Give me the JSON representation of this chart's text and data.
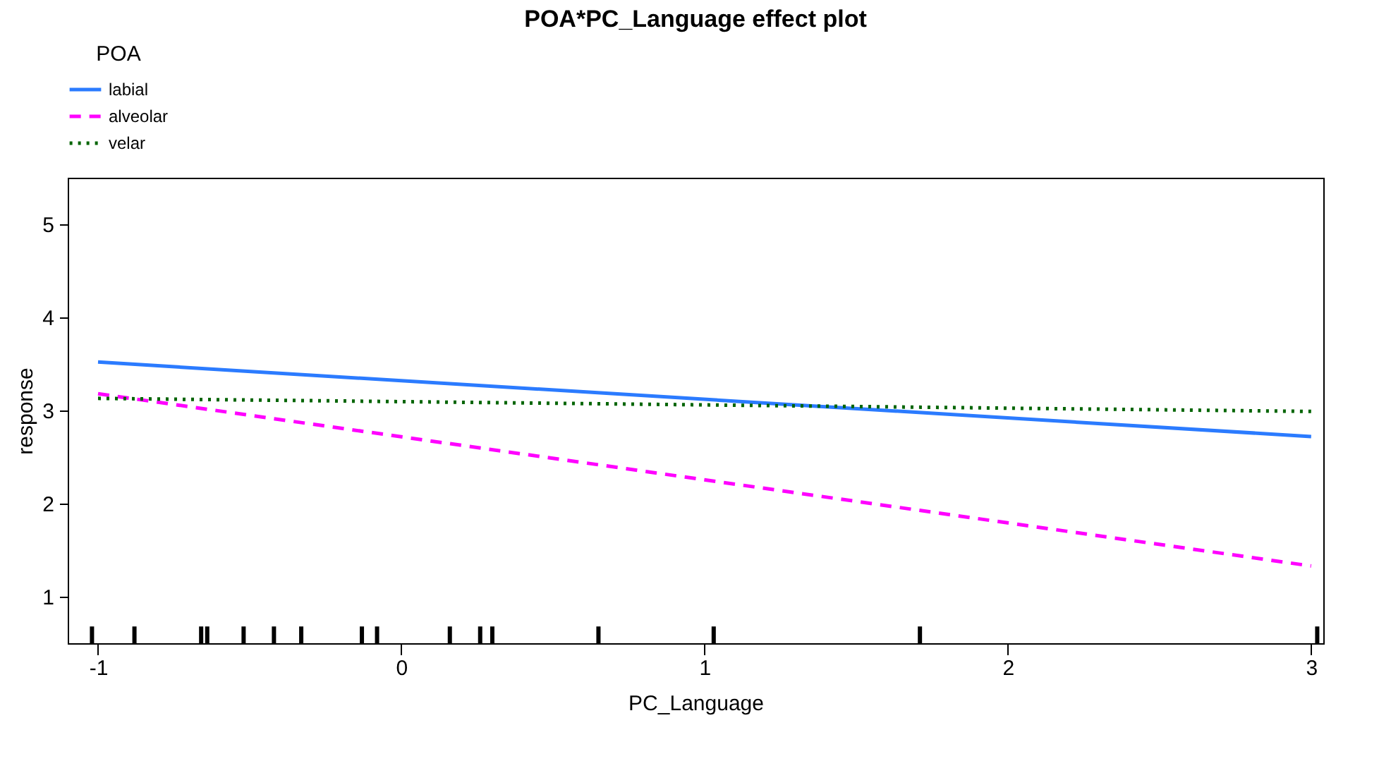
{
  "chart_data": {
    "type": "line",
    "title": "POA*PC_Language effect plot",
    "xlabel": "PC_Language",
    "ylabel": "response",
    "legend_title": "POA",
    "legend": "top",
    "xlim": [
      -1.1,
      3.04
    ],
    "xticks": [
      -1,
      0,
      1,
      2,
      3
    ],
    "ylim": [
      0.5,
      5.5
    ],
    "yticks": [
      1,
      2,
      3,
      4,
      5
    ],
    "grid": false,
    "series": [
      {
        "name": "labial",
        "color": "#2b7bff",
        "line_style": "solid",
        "x": [
          -1,
          3
        ],
        "values": [
          3.52,
          2.72
        ]
      },
      {
        "name": "alveolar",
        "color": "#ff00ff",
        "line_style": "dashed",
        "x": [
          -1,
          3
        ],
        "values": [
          3.18,
          1.33
        ]
      },
      {
        "name": "velar",
        "color": "#006400",
        "line_style": "dotted",
        "x": [
          -1,
          3
        ],
        "values": [
          3.13,
          2.99
        ]
      },
      {
        "type": "bar",
        "color": "#000000",
        "x": [
          -1.02,
          -0.88,
          -0.66,
          -0.64,
          -0.52,
          -0.42,
          -0.33,
          -0.13,
          -0.08,
          0.16,
          0.26,
          0.3,
          0.65,
          1.03,
          1.71,
          3.02
        ],
        "base": [
          0.5,
          0.5,
          0.5,
          0.5,
          0.5,
          0.5,
          0.5,
          0.5,
          0.5,
          0.5,
          0.5,
          0.5,
          0.5,
          0.5,
          0.5,
          0.5
        ],
        "values": [
          0.18,
          0.18,
          0.18,
          0.18,
          0.18,
          0.18,
          0.18,
          0.18,
          0.18,
          0.18,
          0.18,
          0.18,
          0.18,
          0.18,
          0.18,
          0.18
        ]
      }
    ]
  }
}
